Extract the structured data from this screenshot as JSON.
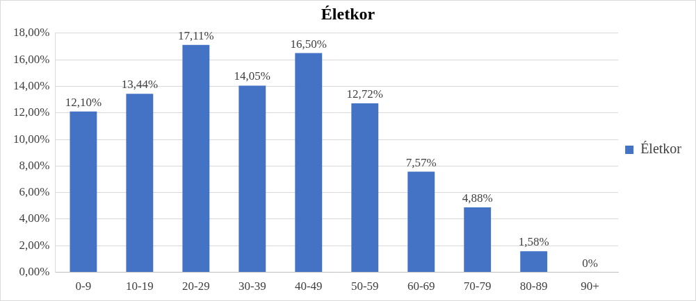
{
  "chart_data": {
    "type": "bar",
    "title": "Életkor",
    "categories": [
      "0-9",
      "10-19",
      "20-29",
      "30-39",
      "40-49",
      "50-59",
      "60-69",
      "70-79",
      "80-89",
      "90+"
    ],
    "series": [
      {
        "name": "Életkor",
        "color": "#4472c4",
        "values": [
          12.1,
          13.44,
          17.11,
          14.05,
          16.5,
          12.72,
          7.57,
          4.88,
          1.58,
          0
        ],
        "value_labels": [
          "12,10%",
          "13,44%",
          "17,11%",
          "14,05%",
          "16,50%",
          "12,72%",
          "7,57%",
          "4,88%",
          "1,58%",
          "0%"
        ]
      }
    ],
    "ylim": [
      0,
      18
    ],
    "yticks": [
      {
        "value": 0,
        "label": "0,00%"
      },
      {
        "value": 2,
        "label": "2,00%"
      },
      {
        "value": 4,
        "label": "4,00%"
      },
      {
        "value": 6,
        "label": "6,00%"
      },
      {
        "value": 8,
        "label": "8,00%"
      },
      {
        "value": 10,
        "label": "10,00%"
      },
      {
        "value": 12,
        "label": "12,00%"
      },
      {
        "value": 14,
        "label": "14,00%"
      },
      {
        "value": 16,
        "label": "16,00%"
      },
      {
        "value": 18,
        "label": "18,00%"
      }
    ],
    "grid": true,
    "legend": "right",
    "data_labels": true
  }
}
